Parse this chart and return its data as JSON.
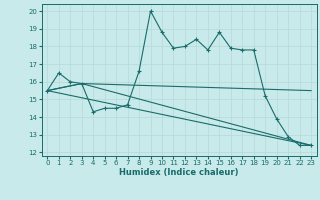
{
  "xlabel": "Humidex (Indice chaleur)",
  "bg_color": "#c8eaea",
  "grid_color": "#b8d8d8",
  "line_color": "#1a6b6b",
  "xlim": [
    -0.5,
    23.5
  ],
  "ylim": [
    11.8,
    20.4
  ],
  "yticks": [
    12,
    13,
    14,
    15,
    16,
    17,
    18,
    19,
    20
  ],
  "xticks": [
    0,
    1,
    2,
    3,
    4,
    5,
    6,
    7,
    8,
    9,
    10,
    11,
    12,
    13,
    14,
    15,
    16,
    17,
    18,
    19,
    20,
    21,
    22,
    23
  ],
  "lines": [
    {
      "x": [
        0,
        1,
        2,
        3,
        4,
        5,
        6,
        7,
        8,
        9,
        10,
        11,
        12,
        13,
        14,
        15,
        16,
        17,
        18,
        19,
        20,
        21,
        22,
        23
      ],
      "y": [
        15.5,
        16.5,
        16.0,
        15.9,
        14.3,
        14.5,
        14.5,
        14.7,
        16.6,
        20.0,
        18.8,
        17.9,
        18.0,
        18.4,
        17.8,
        18.8,
        17.9,
        17.8,
        17.8,
        15.2,
        13.9,
        12.9,
        12.4,
        12.4
      ],
      "marker": true
    },
    {
      "x": [
        0,
        3,
        23
      ],
      "y": [
        15.5,
        15.9,
        12.4
      ],
      "marker": false
    },
    {
      "x": [
        0,
        3,
        23
      ],
      "y": [
        15.5,
        15.9,
        15.5
      ],
      "marker": false
    },
    {
      "x": [
        0,
        23
      ],
      "y": [
        15.5,
        12.4
      ],
      "marker": false
    }
  ],
  "tick_fontsize": 5.0,
  "xlabel_fontsize": 6.0,
  "lw": 0.8
}
